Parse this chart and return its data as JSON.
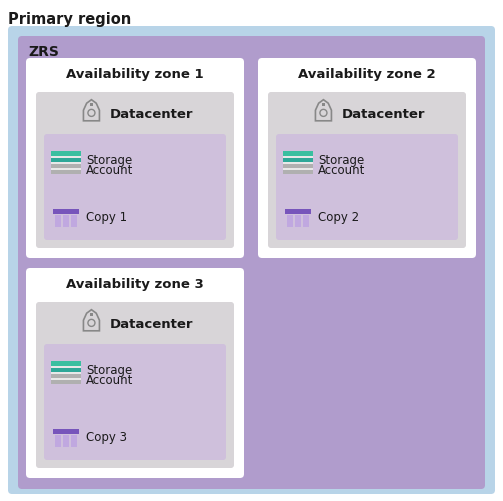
{
  "title": "Primary region",
  "zrs_label": "ZRS",
  "zones": [
    {
      "label": "Availability zone 1",
      "copy": "Copy 1"
    },
    {
      "label": "Availability zone 2",
      "copy": "Copy 2"
    },
    {
      "label": "Availability zone 3",
      "copy": "Copy 3"
    }
  ],
  "bg_outer_blue": "#b8d4e8",
  "bg_zrs_purple": "#b09ccc",
  "bg_zone_white": "#ffffff",
  "bg_dc_gray": "#d8d5d8",
  "bg_storage_lavender": "#cfc0dc",
  "storage_teal1": "#3abfa0",
  "storage_teal2": "#2ea898",
  "storage_gray1": "#b0b0b0",
  "storage_white": "#ffffff",
  "copy_purple_dark": "#7b5ea7",
  "copy_purple_light": "#c0a8e0",
  "copy_purple_top": "#7755bb",
  "dc_icon_color": "#888888",
  "text_dark": "#1a1a1a",
  "title_fontsize": 10.5,
  "zrs_fontsize": 10,
  "zone_fontsize": 9.5,
  "dc_fontsize": 9.5,
  "item_fontsize": 8.5
}
